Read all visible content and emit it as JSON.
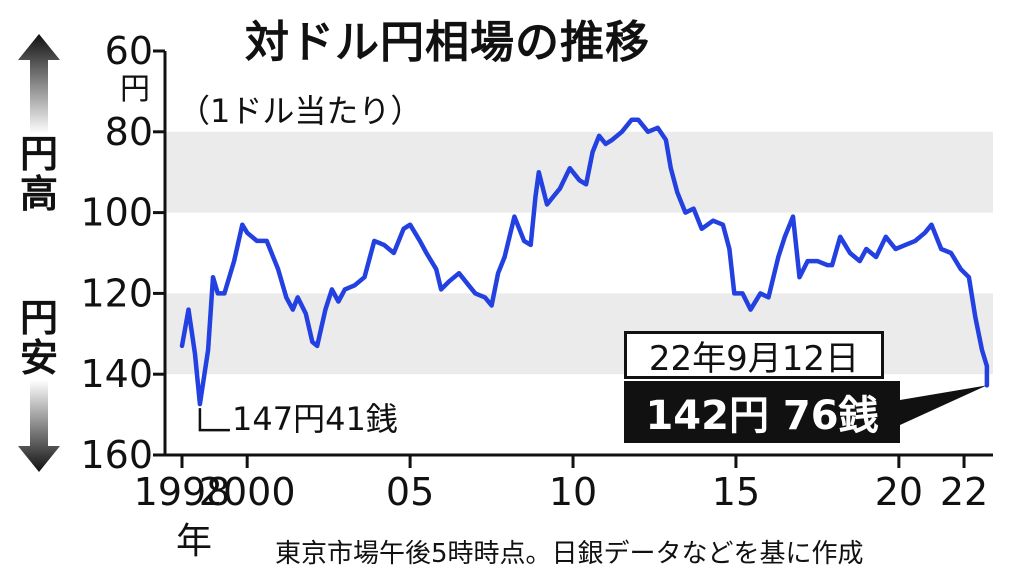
{
  "chart_data": {
    "type": "line",
    "title": "対ドル円相場の推移",
    "unit_note": "（1ドル当たり）",
    "y_unit": "円",
    "y_axis_inverted": true,
    "ylim": [
      60,
      160
    ],
    "y_ticks": [
      "60",
      "80",
      "100",
      "120",
      "140",
      "160"
    ],
    "x_ticks": [
      {
        "year": 1998,
        "label": "1998"
      },
      {
        "year": 2000,
        "label": "2000"
      },
      {
        "year": 2005,
        "label": "05"
      },
      {
        "year": 2010,
        "label": "10"
      },
      {
        "year": 2015,
        "label": "15"
      },
      {
        "year": 2020,
        "label": "20"
      },
      {
        "year": 2022,
        "label": "22"
      }
    ],
    "x_year_suffix": "年",
    "shaded_bands": [
      [
        80,
        100
      ],
      [
        120,
        140
      ]
    ],
    "side_labels": {
      "top": "円高",
      "bottom": "円安"
    },
    "series": [
      {
        "color": "#2340e0",
        "points": [
          [
            1998.0,
            133
          ],
          [
            1998.2,
            124
          ],
          [
            1998.4,
            135
          ],
          [
            1998.55,
            147.4
          ],
          [
            1998.8,
            134
          ],
          [
            1998.95,
            116
          ],
          [
            1999.1,
            120
          ],
          [
            1999.3,
            120
          ],
          [
            1999.6,
            112
          ],
          [
            1999.85,
            103
          ],
          [
            2000.0,
            105
          ],
          [
            2000.3,
            107
          ],
          [
            2000.6,
            107
          ],
          [
            2000.95,
            114
          ],
          [
            2001.2,
            121
          ],
          [
            2001.4,
            124
          ],
          [
            2001.55,
            121
          ],
          [
            2001.8,
            125
          ],
          [
            2002.0,
            132
          ],
          [
            2002.15,
            133
          ],
          [
            2002.4,
            124
          ],
          [
            2002.6,
            119
          ],
          [
            2002.8,
            122
          ],
          [
            2003.0,
            119
          ],
          [
            2003.3,
            118
          ],
          [
            2003.6,
            116
          ],
          [
            2003.9,
            107
          ],
          [
            2004.2,
            108
          ],
          [
            2004.5,
            110
          ],
          [
            2004.8,
            104
          ],
          [
            2005.0,
            103
          ],
          [
            2005.3,
            107
          ],
          [
            2005.5,
            110
          ],
          [
            2005.8,
            114
          ],
          [
            2005.95,
            119
          ],
          [
            2006.2,
            117
          ],
          [
            2006.5,
            115
          ],
          [
            2006.8,
            118
          ],
          [
            2007.0,
            120
          ],
          [
            2007.3,
            121
          ],
          [
            2007.5,
            123
          ],
          [
            2007.7,
            115
          ],
          [
            2007.9,
            111
          ],
          [
            2008.2,
            101
          ],
          [
            2008.5,
            107
          ],
          [
            2008.7,
            108
          ],
          [
            2008.85,
            96
          ],
          [
            2008.95,
            90
          ],
          [
            2009.2,
            98
          ],
          [
            2009.4,
            96
          ],
          [
            2009.6,
            94
          ],
          [
            2009.9,
            89
          ],
          [
            2010.2,
            92
          ],
          [
            2010.4,
            93
          ],
          [
            2010.6,
            85
          ],
          [
            2010.8,
            81
          ],
          [
            2011.0,
            83
          ],
          [
            2011.2,
            82
          ],
          [
            2011.5,
            80
          ],
          [
            2011.8,
            77
          ],
          [
            2012.0,
            77
          ],
          [
            2012.3,
            80
          ],
          [
            2012.6,
            79
          ],
          [
            2012.85,
            82
          ],
          [
            2013.0,
            89
          ],
          [
            2013.2,
            95
          ],
          [
            2013.45,
            100
          ],
          [
            2013.7,
            99
          ],
          [
            2013.95,
            104
          ],
          [
            2014.3,
            102
          ],
          [
            2014.6,
            103
          ],
          [
            2014.8,
            109
          ],
          [
            2014.95,
            120
          ],
          [
            2015.2,
            120
          ],
          [
            2015.45,
            124
          ],
          [
            2015.75,
            120
          ],
          [
            2016.0,
            121
          ],
          [
            2016.3,
            111
          ],
          [
            2016.5,
            106
          ],
          [
            2016.75,
            101
          ],
          [
            2016.95,
            116
          ],
          [
            2017.2,
            112
          ],
          [
            2017.5,
            112
          ],
          [
            2017.8,
            113
          ],
          [
            2017.95,
            113
          ],
          [
            2018.2,
            106
          ],
          [
            2018.5,
            110
          ],
          [
            2018.8,
            112
          ],
          [
            2019.0,
            109
          ],
          [
            2019.3,
            111
          ],
          [
            2019.6,
            106
          ],
          [
            2019.9,
            109
          ],
          [
            2020.2,
            108
          ],
          [
            2020.5,
            107
          ],
          [
            2020.8,
            105
          ],
          [
            2021.0,
            103
          ],
          [
            2021.3,
            109
          ],
          [
            2021.6,
            110
          ],
          [
            2021.9,
            114
          ],
          [
            2022.15,
            116
          ],
          [
            2022.35,
            126
          ],
          [
            2022.55,
            134
          ],
          [
            2022.7,
            138
          ],
          [
            2022.7,
            142.76
          ]
        ]
      }
    ],
    "annotations": {
      "low": {
        "x": 1998.55,
        "y": 147.4,
        "label": "147円41銭"
      },
      "last_date": "22年9月12日",
      "last_value": "142円 76銭",
      "last_x": 2022.7,
      "last_y": 142.76
    },
    "source_note": "東京市場午後5時時点。日銀データなどを基に作成"
  }
}
